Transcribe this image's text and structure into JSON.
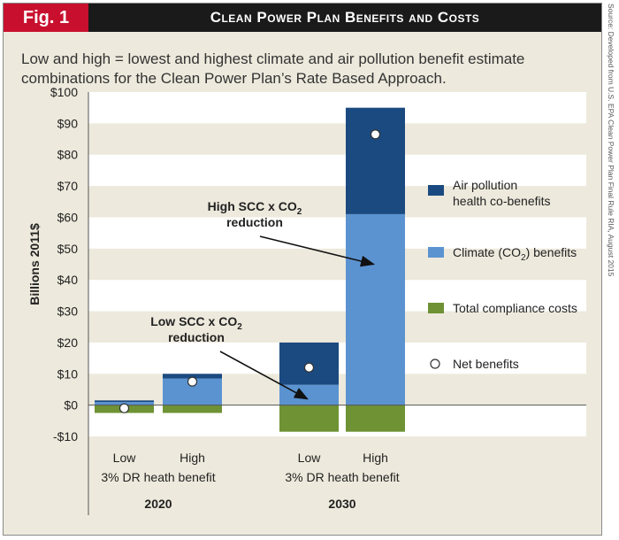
{
  "figure": {
    "badge": "Fig. 1",
    "title": "Clean Power Plan Benefits and Costs",
    "subtitle_line1": "Low and high = lowest and highest climate and air pollution benefit estimate",
    "subtitle_line2": "combinations for the Clean Power Plan’s Rate Based Approach.",
    "source": "Source: Developed from U.S. EPA Clean Power Plan Final Rule RIA, August 2015"
  },
  "colors": {
    "air_pollution": "#1b4a80",
    "climate": "#5b93d1",
    "costs": "#6e9234",
    "band": "#ffffff",
    "background": "#ede9dc"
  },
  "chart_data": {
    "type": "bar",
    "stacked": true,
    "ylabel": "Billions 2011$",
    "ylim": [
      -10,
      100
    ],
    "yticks": [
      {
        "value": 100,
        "label": "$100"
      },
      {
        "value": 90,
        "label": "$90"
      },
      {
        "value": 80,
        "label": "$80"
      },
      {
        "value": 70,
        "label": "$70"
      },
      {
        "value": 60,
        "label": "$60"
      },
      {
        "value": 50,
        "label": "$50"
      },
      {
        "value": 40,
        "label": "$40"
      },
      {
        "value": 30,
        "label": "$30"
      },
      {
        "value": 20,
        "label": "$20"
      },
      {
        "value": 10,
        "label": "$10"
      },
      {
        "value": 0,
        "label": "$0"
      },
      {
        "value": -10,
        "label": "-$10"
      }
    ],
    "groups": [
      {
        "year": "2020",
        "caption": "3% DR heath benefit",
        "categories": [
          "Low",
          "High"
        ]
      },
      {
        "year": "2030",
        "caption": "3% DR heath benefit",
        "categories": [
          "Low",
          "High"
        ]
      }
    ],
    "categories": [
      "2020 Low",
      "2020 High",
      "2030 Low",
      "2030 High"
    ],
    "series": [
      {
        "name": "Air pollution health co-benefits",
        "key": "air",
        "values": [
          0.5,
          1.5,
          13.5,
          34
        ]
      },
      {
        "name": "Climate (CO2) benefits",
        "key": "climate",
        "values": [
          1,
          8.5,
          6.5,
          61
        ]
      },
      {
        "name": "Total compliance costs",
        "key": "costs",
        "values": [
          -2.5,
          -2.5,
          -8.5,
          -8.5
        ]
      }
    ],
    "net_benefits": {
      "name": "Net benefits",
      "values": [
        -1,
        7.5,
        12,
        86.5
      ]
    },
    "legend": {
      "placement": "right",
      "items": [
        {
          "key": "air",
          "line1": "Air pollution",
          "line2": "health co-benefits"
        },
        {
          "key": "climate",
          "pre": "Climate (CO",
          "sub": "2",
          "post": ") benefits"
        },
        {
          "key": "costs",
          "line1": "Total compliance costs"
        },
        {
          "key": "net",
          "line1": "Net benefits"
        }
      ]
    },
    "annotations": [
      {
        "pre": "High SCC x CO",
        "sub": "2",
        "line2": "reduction",
        "points_to": "2030 High",
        "value": 45
      },
      {
        "pre": "Low SCC x CO",
        "sub": "2",
        "line2": "reduction",
        "points_to": "2030 Low",
        "value": 2
      }
    ]
  }
}
